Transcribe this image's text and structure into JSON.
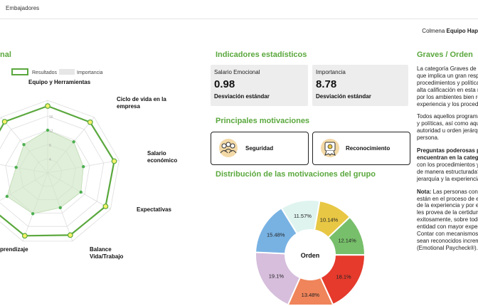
{
  "topbar": {
    "title": "Embajadores"
  },
  "company": {
    "label": "Colmena",
    "name": "Equipo Hap"
  },
  "left_section": {
    "title": "nal"
  },
  "radar": {
    "legend": {
      "results": "Resultados",
      "importance": "Importancia"
    },
    "axes": [
      "Equipo y Herramientas",
      "Ciclo de vida en la empresa",
      "Salario económico",
      "Expectativas",
      "Balance Vida/Trabajo",
      "prendizaje"
    ],
    "tick_labels": [
      "4",
      "8",
      "12",
      "16"
    ],
    "colors": {
      "results": "#5aa83d",
      "importance": "#cfe7c5"
    }
  },
  "indicators": {
    "title": "Indicadores estadísticos",
    "cards": [
      {
        "label": "Salario Emocional",
        "value": "0.98",
        "sub": "Desviación estándar"
      },
      {
        "label": "Importancia",
        "value": "8.78",
        "sub": "Desviación estándar"
      }
    ]
  },
  "motivations": {
    "title": "Principales motivaciones",
    "items": [
      {
        "label": "Seguridad",
        "icon": "team-icon"
      },
      {
        "label": "Reconocimiento",
        "icon": "award-icon"
      }
    ]
  },
  "distribution": {
    "title": "Distribución de las motivaciones del grupo"
  },
  "chart_data": {
    "type": "pie",
    "center_label": "Orden",
    "slices": [
      {
        "label": "10.14%",
        "value": 10.14,
        "color": "#e8c744"
      },
      {
        "label": "12.14%",
        "value": 12.14,
        "color": "#77bf6a"
      },
      {
        "label": "18.1%",
        "value": 18.1,
        "color": "#e53a2c"
      },
      {
        "label": "13.48%",
        "value": 13.48,
        "color": "#f0845a"
      },
      {
        "label": "19.1%",
        "value": 19.1,
        "color": "#d6bedc"
      },
      {
        "label": "15.48%",
        "value": 15.48,
        "color": "#78b2e3"
      },
      {
        "label": "11.57%",
        "value": 11.57,
        "color": "#dff4ef"
      }
    ]
  },
  "graves": {
    "title": "Graves / Orden",
    "p1": [
      "La categoría Graves de O",
      "que implica un gran resp",
      "procedimientos y política",
      "alta calificación en esta m",
      "por los ambientes bien re",
      "experiencia y los procedi"
    ],
    "p2": [
      "Todos aquellos programa",
      "y políticas, así como aqu",
      "autoridad u orden jerárqu",
      "persona."
    ],
    "p3_bold": [
      "Preguntas poderosas p",
      "encuentran en la catego"
    ],
    "p3": [
      "con los procedimientos y",
      "de manera estructurada?",
      "jerarquía y la experiencia"
    ],
    "p4_bold": "Nota:",
    "p4_first": " Las personas con",
    "p4": [
      "están en el proceso de e",
      "de la experiencia y por e",
      "les provea de la certidum",
      "exitosamente, sobre todo",
      "entidad con mayor exper",
      "Contar con mecanismos,",
      "sean reconocidos increm",
      "(Emotional Paycheck®)."
    ]
  }
}
